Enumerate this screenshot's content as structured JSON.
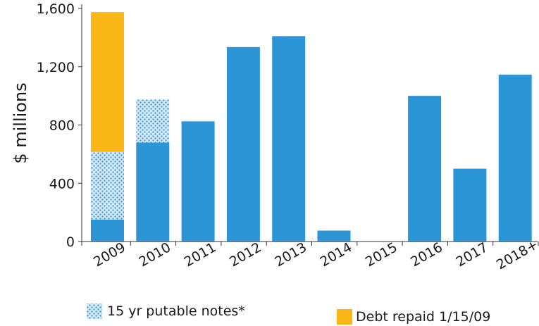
{
  "chart_data": {
    "type": "bar",
    "stacked": true,
    "title": "",
    "xlabel": "",
    "ylabel": "$ millions",
    "ylim": [
      0,
      1600
    ],
    "yticks": [
      0,
      400,
      800,
      1200,
      1600
    ],
    "ytick_labels": [
      "0",
      "400",
      "800",
      "1,200",
      "1,600"
    ],
    "categories": [
      "2009",
      "2010",
      "2011",
      "2012",
      "2013",
      "2014",
      "2015",
      "2016",
      "2017",
      "2018+"
    ],
    "series": [
      {
        "key": "base",
        "values": [
          150,
          680,
          825,
          1335,
          1410,
          75,
          0,
          1000,
          500,
          1145
        ],
        "color": "#2b95d6",
        "pattern": "solid"
      },
      {
        "key": "putable",
        "name": "15 yr putable notes*",
        "values": [
          465,
          295,
          0,
          0,
          0,
          0,
          0,
          0,
          0,
          0
        ],
        "color": "#2b95d6",
        "pattern": "dotted"
      },
      {
        "key": "repaid",
        "name": "Debt repaid 1/15/09",
        "values": [
          960,
          0,
          0,
          0,
          0,
          0,
          0,
          0,
          0,
          0
        ],
        "color": "#fbb617",
        "pattern": "solid"
      }
    ],
    "legend": {
      "placement": "bottom",
      "items": [
        {
          "series": "putable",
          "label": "15 yr putable notes*"
        },
        {
          "series": "repaid",
          "label": "Debt repaid 1/15/09"
        }
      ]
    },
    "grid": false
  }
}
